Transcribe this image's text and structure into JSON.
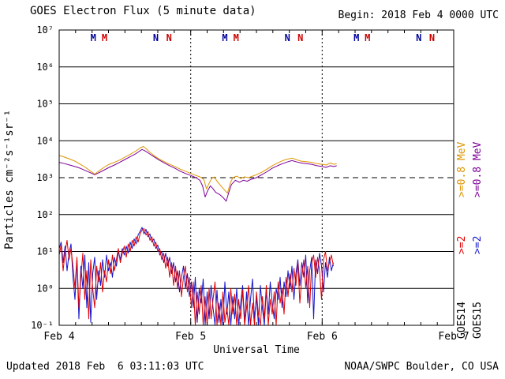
{
  "header": {
    "title": "GOES Electron Flux (5 minute data)",
    "begin_label": "Begin: 2018 Feb 4 0000 UTC"
  },
  "footer": {
    "updated": "Updated 2018 Feb  6 03:11:03 UTC",
    "credit": "NOAA/SWPC Boulder, CO USA"
  },
  "axes": {
    "x_label": "Universal Time",
    "y_label": "Particles cm⁻²s⁻¹sr⁻¹"
  },
  "legend": {
    "columns": [
      {
        "satellite": "GOES14",
        "e08_label": ">=0.8 MeV",
        "e08_color": "#dd9500",
        "e2_label": ">=2",
        "e2_color": "#e00000"
      },
      {
        "satellite": "GOES15",
        "e08_label": ">=0.8 MeV",
        "e08_color": "#7d0099",
        "e2_label": ">=2",
        "e2_color": "#1414cc"
      }
    ]
  },
  "chart_data": {
    "type": "line",
    "title": "GOES Electron Flux (5 minute data)",
    "xlabel": "Universal Time",
    "ylabel": "Particles cm-2 s-1 sr-1",
    "x": {
      "min": 0,
      "max": 3,
      "unit": "days since 2018 Feb 4 0000 UTC",
      "ticks": [
        {
          "label": "Feb 4",
          "day": 0
        },
        {
          "label": "Feb 5",
          "day": 1
        },
        {
          "label": "Feb 6",
          "day": 2
        },
        {
          "label": "Feb 7",
          "day": 3
        }
      ],
      "minor_tick_day_step": 0.125,
      "dotted_day_boundaries": [
        1,
        2
      ]
    },
    "y": {
      "scale": "log",
      "min_exp": -1,
      "max_exp": 7,
      "threshold_dashed_exp": 3,
      "ticks": [
        {
          "exp": 7,
          "label": "10⁷"
        },
        {
          "exp": 6,
          "label": "10⁶"
        },
        {
          "exp": 5,
          "label": "10⁵"
        },
        {
          "exp": 4,
          "label": "10⁴"
        },
        {
          "exp": 3,
          "label": "10³"
        },
        {
          "exp": 2,
          "label": "10²"
        },
        {
          "exp": 1,
          "label": "10¹"
        },
        {
          "exp": 0,
          "label": "10⁰"
        },
        {
          "exp": -1,
          "label": "10⁻¹"
        }
      ]
    },
    "noon_midnight_markers": {
      "days": [
        0,
        1,
        2
      ],
      "items": [
        {
          "label": "M",
          "color": "#000099",
          "day_offset": 0.26
        },
        {
          "label": "M",
          "color": "#cc0000",
          "day_offset": 0.345
        },
        {
          "label": "N",
          "color": "#000099",
          "day_offset": 0.735
        },
        {
          "label": "N",
          "color": "#cc0000",
          "day_offset": 0.835
        }
      ]
    },
    "series": [
      {
        "name": "GOES15 >=0.8 MeV",
        "color": "#7d0099",
        "points": [
          [
            0.0,
            2600
          ],
          [
            0.04,
            2400
          ],
          [
            0.08,
            2200
          ],
          [
            0.12,
            2000
          ],
          [
            0.16,
            1800
          ],
          [
            0.2,
            1550
          ],
          [
            0.24,
            1350
          ],
          [
            0.27,
            1200
          ],
          [
            0.3,
            1350
          ],
          [
            0.34,
            1600
          ],
          [
            0.38,
            1900
          ],
          [
            0.42,
            2200
          ],
          [
            0.46,
            2600
          ],
          [
            0.5,
            3100
          ],
          [
            0.54,
            3700
          ],
          [
            0.58,
            4400
          ],
          [
            0.61,
            5200
          ],
          [
            0.63,
            5800
          ],
          [
            0.65,
            5400
          ],
          [
            0.68,
            4600
          ],
          [
            0.72,
            3700
          ],
          [
            0.76,
            3000
          ],
          [
            0.8,
            2500
          ],
          [
            0.84,
            2100
          ],
          [
            0.88,
            1800
          ],
          [
            0.92,
            1500
          ],
          [
            0.96,
            1300
          ],
          [
            1.0,
            1150
          ],
          [
            1.04,
            1000
          ],
          [
            1.07,
            850
          ],
          [
            1.09,
            600
          ],
          [
            1.11,
            300
          ],
          [
            1.13,
            450
          ],
          [
            1.15,
            600
          ],
          [
            1.17,
            500
          ],
          [
            1.19,
            400
          ],
          [
            1.22,
            350
          ],
          [
            1.25,
            280
          ],
          [
            1.27,
            230
          ],
          [
            1.29,
            400
          ],
          [
            1.31,
            650
          ],
          [
            1.34,
            850
          ],
          [
            1.37,
            750
          ],
          [
            1.4,
            850
          ],
          [
            1.43,
            800
          ],
          [
            1.46,
            900
          ],
          [
            1.5,
            1000
          ],
          [
            1.54,
            1200
          ],
          [
            1.58,
            1450
          ],
          [
            1.62,
            1800
          ],
          [
            1.66,
            2100
          ],
          [
            1.7,
            2400
          ],
          [
            1.74,
            2700
          ],
          [
            1.77,
            2900
          ],
          [
            1.8,
            2700
          ],
          [
            1.84,
            2500
          ],
          [
            1.88,
            2400
          ],
          [
            1.92,
            2300
          ],
          [
            1.96,
            2100
          ],
          [
            2.0,
            2000
          ],
          [
            2.03,
            1900
          ],
          [
            2.06,
            2100
          ],
          [
            2.09,
            2000
          ],
          [
            2.11,
            2100
          ]
        ]
      },
      {
        "name": "GOES14 >=0.8 MeV",
        "color": "#dd9500",
        "points": [
          [
            0.0,
            4000
          ],
          [
            0.04,
            3600
          ],
          [
            0.08,
            3200
          ],
          [
            0.12,
            2800
          ],
          [
            0.16,
            2300
          ],
          [
            0.2,
            1900
          ],
          [
            0.24,
            1500
          ],
          [
            0.27,
            1250
          ],
          [
            0.3,
            1500
          ],
          [
            0.34,
            1900
          ],
          [
            0.38,
            2300
          ],
          [
            0.42,
            2600
          ],
          [
            0.46,
            3000
          ],
          [
            0.5,
            3600
          ],
          [
            0.54,
            4300
          ],
          [
            0.58,
            5200
          ],
          [
            0.62,
            6500
          ],
          [
            0.64,
            7000
          ],
          [
            0.66,
            6200
          ],
          [
            0.68,
            5200
          ],
          [
            0.72,
            4000
          ],
          [
            0.76,
            3200
          ],
          [
            0.8,
            2700
          ],
          [
            0.84,
            2300
          ],
          [
            0.88,
            2000
          ],
          [
            0.92,
            1700
          ],
          [
            0.96,
            1500
          ],
          [
            1.0,
            1300
          ],
          [
            1.04,
            1150
          ],
          [
            1.07,
            1050
          ],
          [
            1.1,
            900
          ],
          [
            1.12,
            500
          ],
          [
            1.14,
            700
          ],
          [
            1.16,
            950
          ],
          [
            1.18,
            1050
          ],
          [
            1.2,
            800
          ],
          [
            1.23,
            600
          ],
          [
            1.26,
            450
          ],
          [
            1.28,
            380
          ],
          [
            1.3,
            700
          ],
          [
            1.32,
            1000
          ],
          [
            1.35,
            1100
          ],
          [
            1.38,
            950
          ],
          [
            1.41,
            1050
          ],
          [
            1.44,
            1000
          ],
          [
            1.47,
            1100
          ],
          [
            1.5,
            1200
          ],
          [
            1.54,
            1400
          ],
          [
            1.58,
            1700
          ],
          [
            1.62,
            2100
          ],
          [
            1.66,
            2500
          ],
          [
            1.7,
            2900
          ],
          [
            1.74,
            3200
          ],
          [
            1.77,
            3400
          ],
          [
            1.8,
            3100
          ],
          [
            1.84,
            2800
          ],
          [
            1.88,
            2700
          ],
          [
            1.92,
            2600
          ],
          [
            1.96,
            2400
          ],
          [
            2.0,
            2300
          ],
          [
            2.03,
            2200
          ],
          [
            2.06,
            2500
          ],
          [
            2.09,
            2300
          ],
          [
            2.11,
            2400
          ]
        ]
      },
      {
        "name": "GOES15 >=2 MeV",
        "color": "#1414cc",
        "x_start": 0,
        "x_step": 0.015,
        "values": [
          12,
          18,
          5,
          14,
          3,
          9,
          16,
          2,
          0.5,
          6,
          0.15,
          4,
          1,
          8,
          0.3,
          5,
          0.12,
          2.5,
          7,
          0.5,
          3,
          1.2,
          6,
          2,
          8,
          3,
          5,
          2,
          7,
          4,
          10,
          6,
          12,
          8,
          14,
          9,
          18,
          12,
          22,
          16,
          28,
          35,
          45,
          30,
          40,
          25,
          30,
          18,
          22,
          12,
          15,
          8,
          10,
          5,
          9,
          4,
          7,
          2.5,
          5,
          1.5,
          3,
          0.8,
          2,
          4,
          1,
          2.5,
          0.6,
          1.5,
          0.3,
          2,
          0.12,
          1,
          0.4,
          1.8,
          0.1,
          0.8,
          0.15,
          1.2,
          0.3,
          0.1,
          0.9,
          0.12,
          0.5,
          0.1,
          1.5,
          0.2,
          0.8,
          0.1,
          0.6,
          0.15,
          1,
          0.1,
          0.4,
          1.2,
          0.12,
          0.8,
          0.1,
          0.5,
          1.8,
          0.15,
          0.6,
          0.1,
          1.2,
          0.3,
          0.1,
          0.9,
          0.2,
          1.5,
          0.4,
          0.15,
          1,
          0.5,
          2,
          0.3,
          1.5,
          0.6,
          3,
          1,
          4,
          0.5,
          2.5,
          6,
          1.2,
          5,
          2,
          8,
          0.4,
          3,
          7,
          0.15,
          6,
          2.5,
          9,
          4,
          0.8,
          5,
          2,
          7,
          3,
          5
        ]
      },
      {
        "name": "GOES14 >=2 MeV",
        "color": "#e00000",
        "x_start": 0,
        "x_step": 0.015,
        "values": [
          8,
          15,
          3,
          10,
          20,
          6,
          12,
          4,
          1,
          7,
          0.3,
          2,
          9,
          0.5,
          3,
          0.15,
          6,
          1,
          0.3,
          4,
          1.5,
          5,
          0.8,
          3,
          1.5,
          6,
          2.5,
          8,
          3,
          6,
          12,
          5,
          9,
          14,
          7,
          16,
          10,
          20,
          14,
          25,
          18,
          30,
          38,
          42,
          28,
          35,
          20,
          25,
          14,
          18,
          10,
          12,
          6,
          9,
          3.5,
          7,
          2,
          5,
          1.2,
          4,
          1,
          3,
          0.6,
          2,
          4,
          0.8,
          2,
          0.3,
          1.5,
          0.1,
          0.8,
          0.2,
          1.2,
          0.1,
          0.6,
          0.1,
          1,
          0.15,
          0.5,
          1.5,
          0.1,
          0.4,
          0.1,
          0.8,
          0.12,
          0.3,
          0.1,
          1,
          0.2,
          0.7,
          0.1,
          0.5,
          0.15,
          0.9,
          0.1,
          0.3,
          1.2,
          0.1,
          0.4,
          0.1,
          0.8,
          0.2,
          0.1,
          0.6,
          0.15,
          1.2,
          0.1,
          0.5,
          0.2,
          0.8,
          0.1,
          1.5,
          0.4,
          1,
          0.2,
          2,
          0.6,
          2.5,
          0.8,
          3.5,
          1.2,
          5,
          0.4,
          2,
          6,
          1,
          4,
          0.3,
          5,
          8,
          2,
          7,
          3,
          0.5,
          6,
          10,
          3,
          5,
          8,
          4
        ]
      }
    ]
  }
}
